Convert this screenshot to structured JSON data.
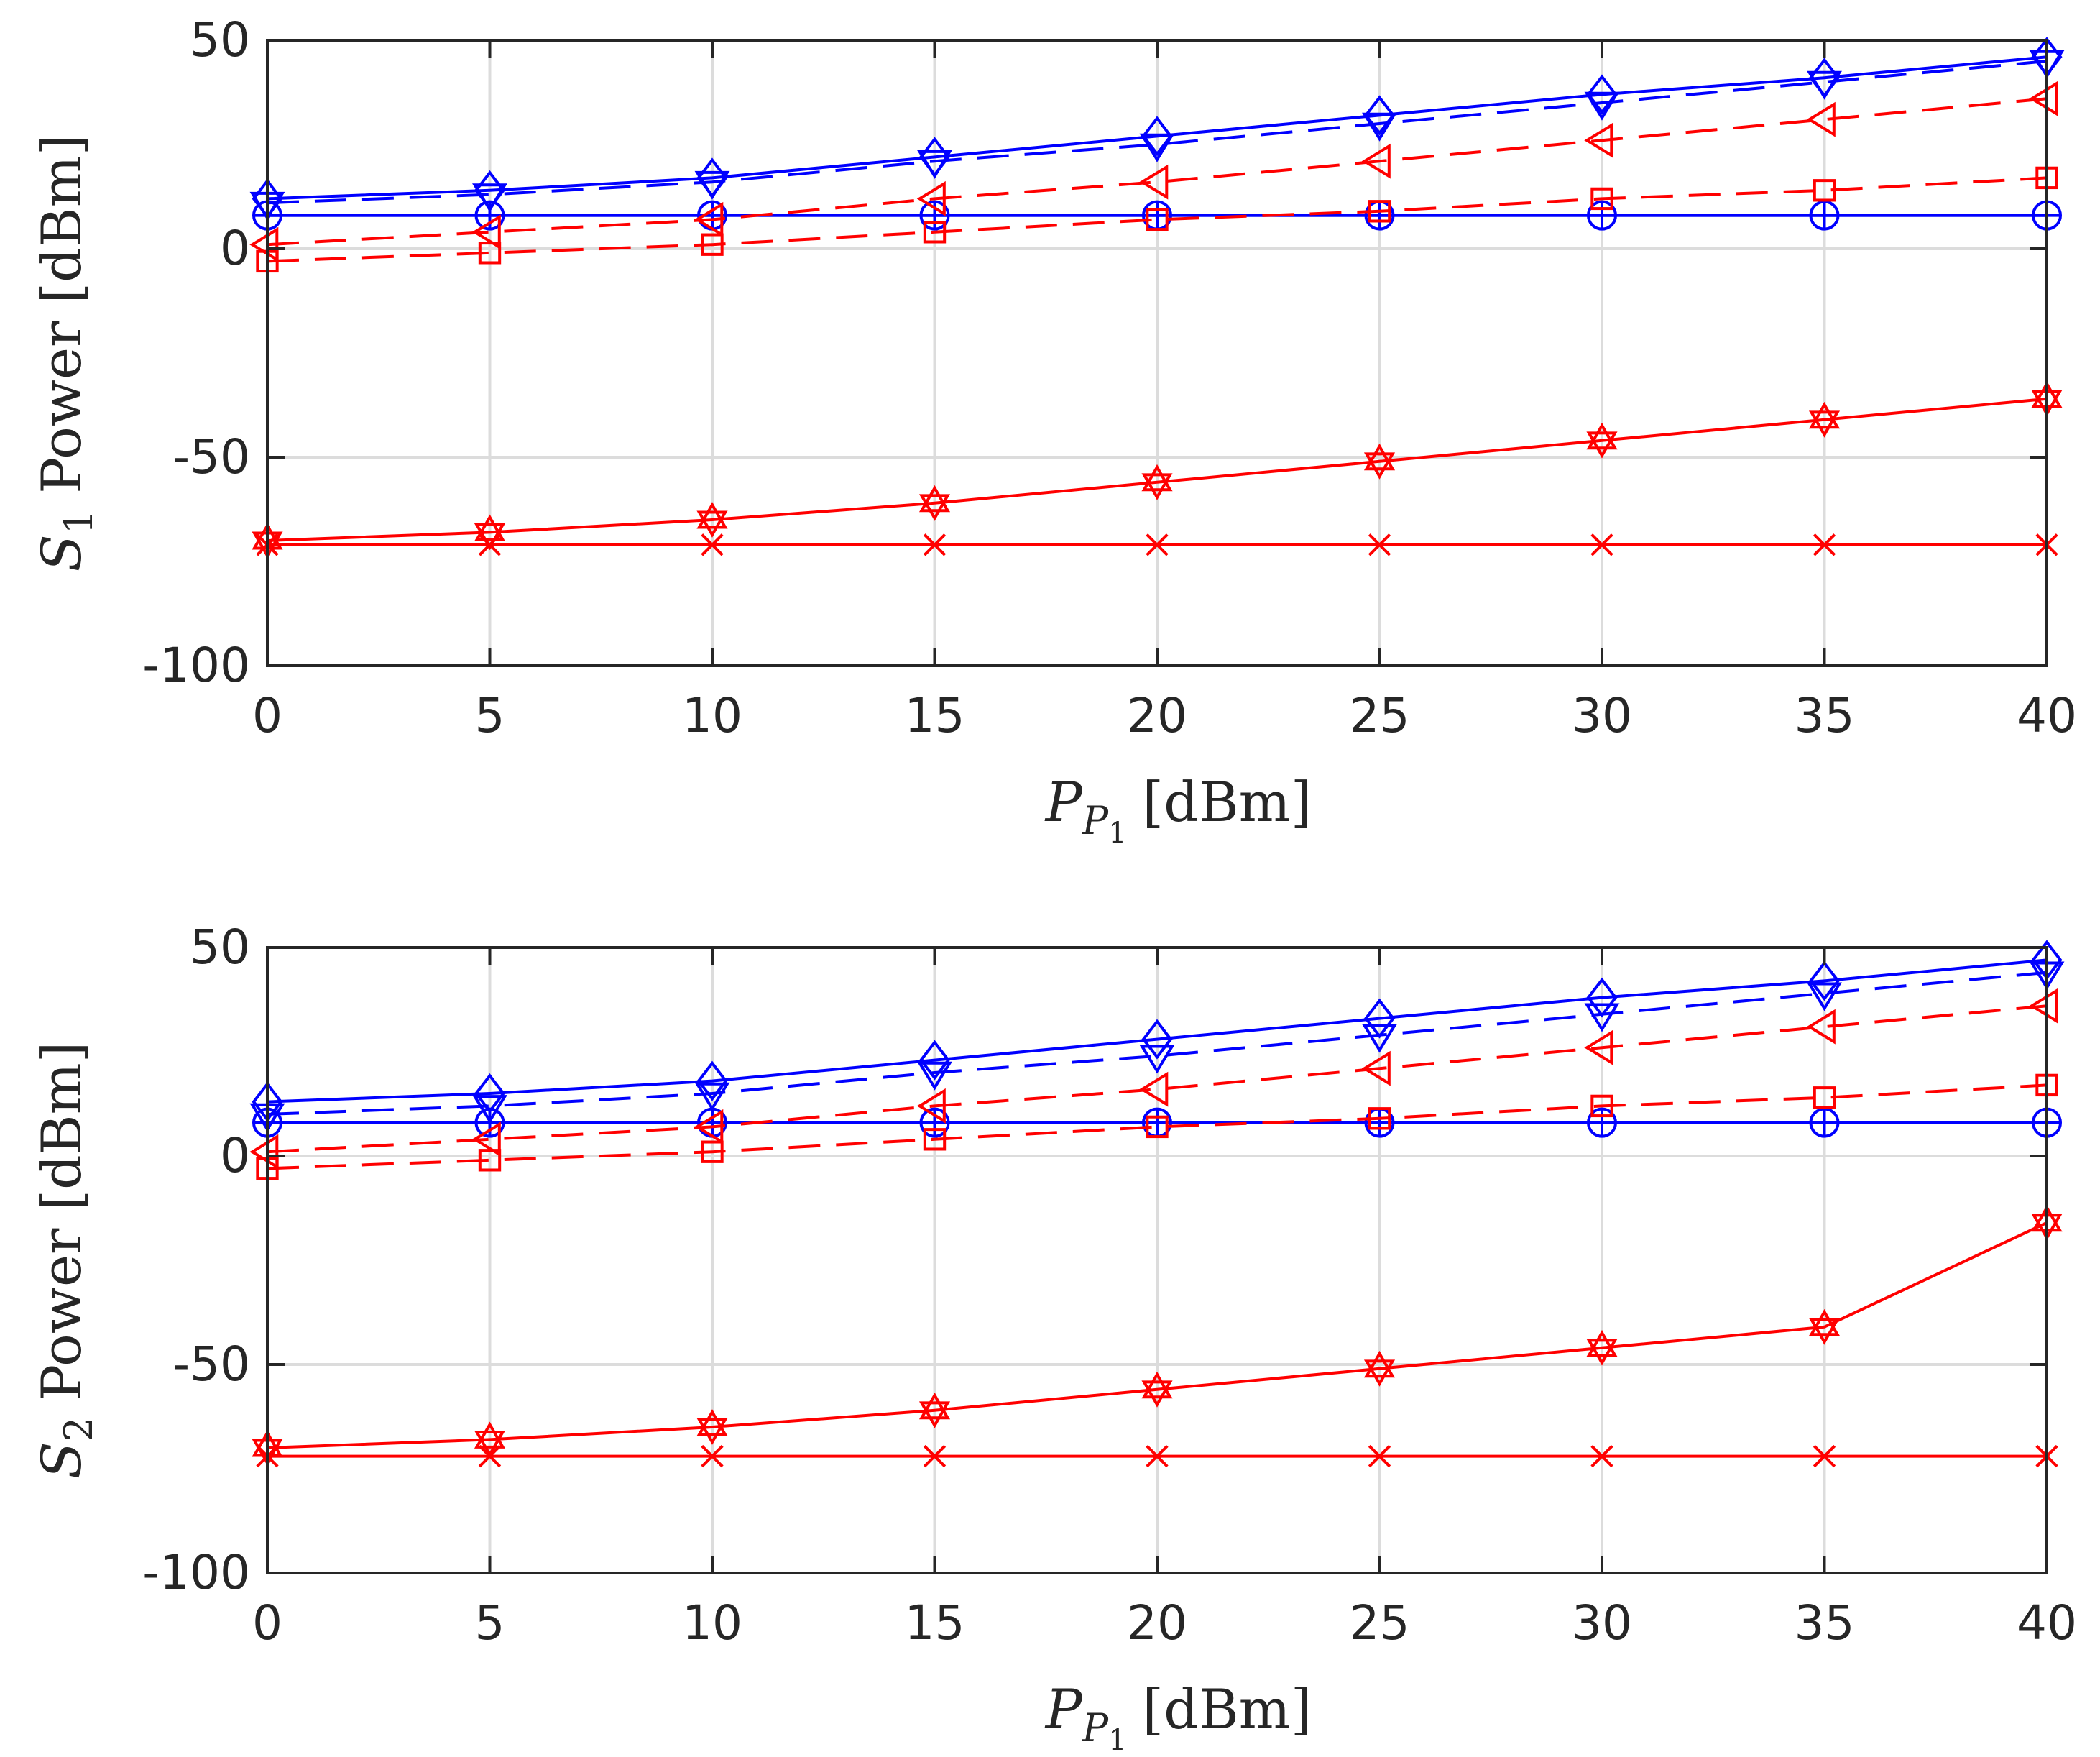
{
  "chart_data": [
    {
      "type": "line",
      "x": [
        0,
        5,
        10,
        15,
        20,
        25,
        30,
        35,
        40
      ],
      "xlim": [
        0,
        40
      ],
      "ylim": [
        -100,
        50
      ],
      "xticks": [
        0,
        5,
        10,
        15,
        20,
        25,
        30,
        35,
        40
      ],
      "yticks": [
        50,
        0,
        -50,
        -100
      ],
      "xlabel": {
        "main": "P",
        "sub": "P",
        "subsub": "1",
        "unit": "[dBm]"
      },
      "ylabel": {
        "main": "S",
        "sub": "1",
        "rest": "Power [dBm]"
      },
      "grid": true,
      "series": [
        {
          "name": "blue-diamond-solid",
          "color": "#0000ff",
          "dash": "solid",
          "marker": "diamond",
          "values": [
            12,
            14,
            17,
            22,
            27,
            32,
            37,
            41,
            46
          ]
        },
        {
          "name": "blue-down-triangle-dashed",
          "color": "#0000ff",
          "dash": "dashed",
          "marker": "triangle-down",
          "values": [
            11,
            13,
            16,
            21,
            25,
            30,
            35,
            40,
            45
          ]
        },
        {
          "name": "blue-circle-solid",
          "color": "#0000ff",
          "dash": "solid",
          "marker": "circle",
          "values": [
            8,
            8,
            8,
            8,
            8,
            8,
            8,
            8,
            8
          ]
        },
        {
          "name": "blue-plus-solid",
          "color": "#0000ff",
          "dash": "solid",
          "marker": "plus",
          "values": [
            8,
            8,
            8,
            8,
            8,
            8,
            8,
            8,
            8
          ]
        },
        {
          "name": "red-left-triangle-dashed",
          "color": "#ff0000",
          "dash": "dashed",
          "marker": "triangle-left",
          "values": [
            1,
            4,
            7,
            12,
            16,
            21,
            26,
            31,
            36
          ]
        },
        {
          "name": "red-square-dashed",
          "color": "#ff0000",
          "dash": "dashed",
          "marker": "square",
          "values": [
            -3,
            -1,
            1,
            4,
            7,
            9,
            12,
            14,
            17
          ]
        },
        {
          "name": "red-hexagram-solid",
          "color": "#ff0000",
          "dash": "solid",
          "marker": "hexagram",
          "values": [
            -70,
            -68,
            -65,
            -61,
            -56,
            -51,
            -46,
            -41,
            -36
          ]
        },
        {
          "name": "red-x-solid",
          "color": "#ff0000",
          "dash": "solid",
          "marker": "x",
          "values": [
            -71,
            -71,
            -71,
            -71,
            -71,
            -71,
            -71,
            -71,
            -71
          ]
        }
      ]
    },
    {
      "type": "line",
      "x": [
        0,
        5,
        10,
        15,
        20,
        25,
        30,
        35,
        40
      ],
      "xlim": [
        0,
        40
      ],
      "ylim": [
        -100,
        50
      ],
      "xticks": [
        0,
        5,
        10,
        15,
        20,
        25,
        30,
        35,
        40
      ],
      "yticks": [
        50,
        0,
        -50,
        -100
      ],
      "xlabel": {
        "main": "P",
        "sub": "P",
        "subsub": "1",
        "unit": "[dBm]"
      },
      "ylabel": {
        "main": "S",
        "sub": "2",
        "rest": "Power [dBm]"
      },
      "grid": true,
      "series": [
        {
          "name": "blue-diamond-solid",
          "color": "#0000ff",
          "dash": "solid",
          "marker": "diamond",
          "values": [
            13,
            15,
            18,
            23,
            28,
            33,
            38,
            42,
            47
          ]
        },
        {
          "name": "blue-down-triangle-dashed",
          "color": "#0000ff",
          "dash": "dashed",
          "marker": "triangle-down",
          "values": [
            10,
            12,
            15,
            20,
            24,
            29,
            34,
            39,
            44
          ]
        },
        {
          "name": "blue-circle-solid",
          "color": "#0000ff",
          "dash": "solid",
          "marker": "circle",
          "values": [
            8,
            8,
            8,
            8,
            8,
            8,
            8,
            8,
            8
          ]
        },
        {
          "name": "blue-plus-solid",
          "color": "#0000ff",
          "dash": "solid",
          "marker": "plus",
          "values": [
            8,
            8,
            8,
            8,
            8,
            8,
            8,
            8,
            8
          ]
        },
        {
          "name": "red-left-triangle-dashed",
          "color": "#ff0000",
          "dash": "dashed",
          "marker": "triangle-left",
          "values": [
            1,
            4,
            7,
            12,
            16,
            21,
            26,
            31,
            36
          ]
        },
        {
          "name": "red-square-dashed",
          "color": "#ff0000",
          "dash": "dashed",
          "marker": "square",
          "values": [
            -3,
            -1,
            1,
            4,
            7,
            9,
            12,
            14,
            17
          ]
        },
        {
          "name": "red-hexagram-solid",
          "color": "#ff0000",
          "dash": "solid",
          "marker": "hexagram",
          "values": [
            -70,
            -68,
            -65,
            -61,
            -56,
            -51,
            -46,
            -41,
            -16
          ]
        },
        {
          "name": "red-x-solid",
          "color": "#ff0000",
          "dash": "solid",
          "marker": "x",
          "values": [
            -72,
            -72,
            -72,
            -72,
            -72,
            -72,
            -72,
            -72,
            -72
          ]
        }
      ]
    }
  ]
}
